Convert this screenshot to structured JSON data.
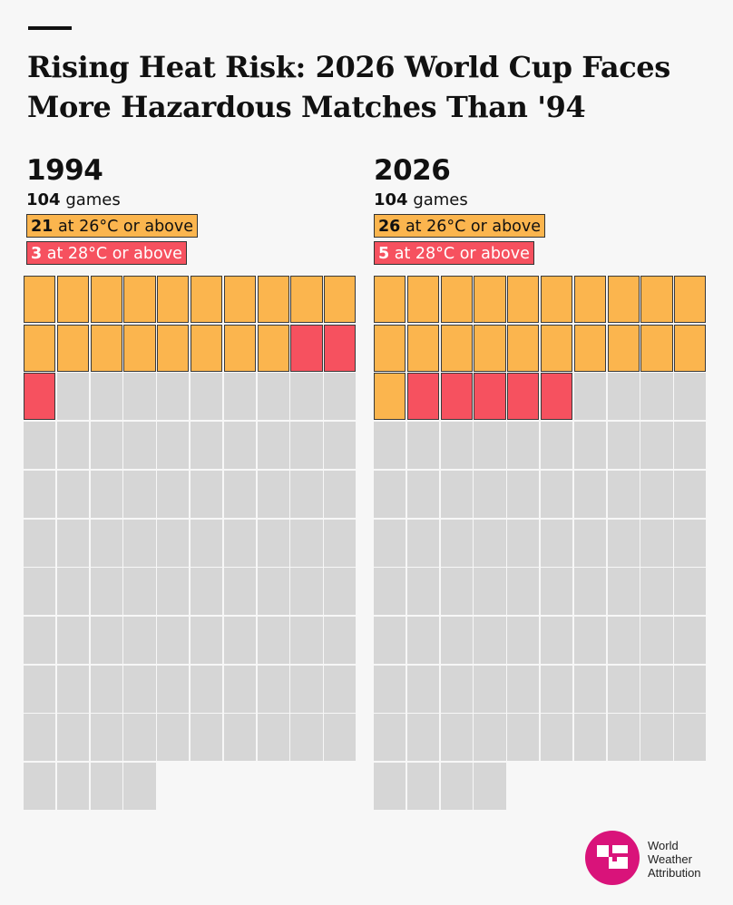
{
  "title": "Rising Heat Risk: 2026 World Cup Faces More Hazardous Matches Than '94",
  "colors": {
    "above_26": "#fbb54e",
    "above_28": "#f6515f",
    "below": "#d6d6d6",
    "brand": "#d9137a"
  },
  "chart_data": [
    {
      "type": "waffle",
      "year": "1994",
      "total_games": 104,
      "games_text": "104",
      "games_label": "games",
      "count_26": "21",
      "label_26": "at 26°C or above",
      "count_28": "3",
      "label_28": "at 28°C or above",
      "values": {
        "total": 104,
        "at_or_above_26": 21,
        "at_or_above_28": 3
      }
    },
    {
      "type": "waffle",
      "year": "2026",
      "total_games": 104,
      "games_text": "104",
      "games_label": "games",
      "count_26": "26",
      "label_26": "at 26°C or above",
      "count_28": "5",
      "label_28": "at 28°C or above",
      "values": {
        "total": 104,
        "at_or_above_26": 26,
        "at_or_above_28": 5
      }
    }
  ],
  "logo": {
    "line1": "World",
    "line2": "Weather",
    "line3": "Attribution"
  }
}
